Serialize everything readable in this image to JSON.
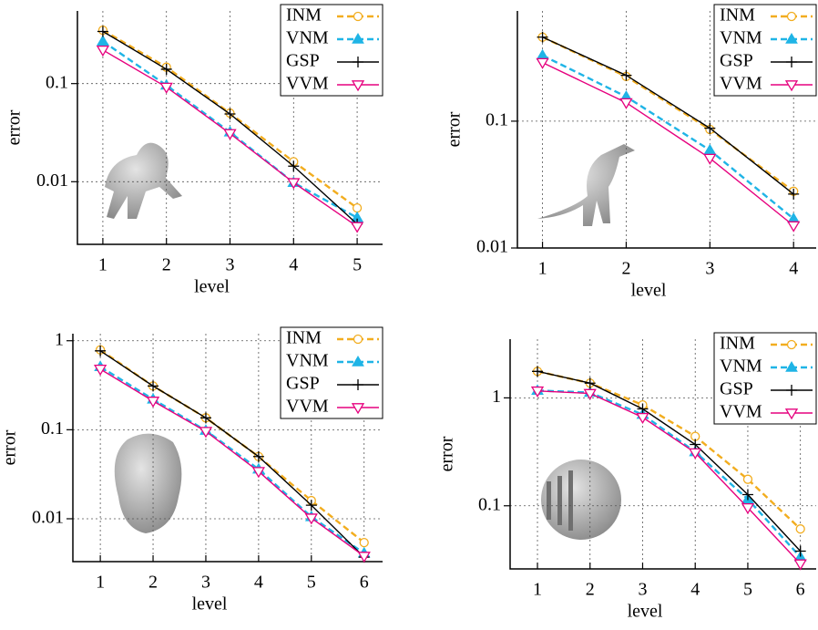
{
  "chart_data": [
    {
      "type": "line",
      "x": [
        1,
        2,
        3,
        4,
        5
      ],
      "xlim": [
        0.6,
        5.4
      ],
      "xticks": [
        1,
        2,
        3,
        4,
        5
      ],
      "ylim": [
        0.0023,
        0.55
      ],
      "yticks": [
        0.01,
        0.1
      ],
      "log_y": true,
      "grid": true,
      "legend": "upper right",
      "xlabel": "level",
      "ylabel": "error",
      "series": [
        {
          "name": "INM",
          "color": "#f2ad1f",
          "marker": "circle",
          "dashed": true,
          "values": [
            0.35,
            0.147,
            0.05,
            0.016,
            0.0054
          ]
        },
        {
          "name": "VNM",
          "color": "#1fb4e6",
          "marker": "triangle",
          "dashed": true,
          "values": [
            0.27,
            0.096,
            0.032,
            0.0098,
            0.0043
          ]
        },
        {
          "name": "GSP",
          "color": "#000000",
          "marker": "plus",
          "dashed": false,
          "values": [
            0.34,
            0.14,
            0.049,
            0.0144,
            0.0037
          ]
        },
        {
          "name": "VVM",
          "color": "#e6007e",
          "marker": "triangle-down",
          "dashed": false,
          "values": [
            0.22,
            0.092,
            0.031,
            0.0098,
            0.0035
          ]
        }
      ]
    },
    {
      "type": "line",
      "x": [
        1,
        2,
        3,
        4
      ],
      "xlim": [
        0.7,
        4.27
      ],
      "xticks": [
        1,
        2,
        3,
        4
      ],
      "ylim": [
        0.01,
        0.74
      ],
      "yticks": [
        0.01,
        0.1
      ],
      "log_y": true,
      "grid": true,
      "legend": "upper right",
      "xlabel": "level",
      "ylabel": "error",
      "series": [
        {
          "name": "INM",
          "color": "#f2ad1f",
          "marker": "circle",
          "dashed": true,
          "values": [
            0.46,
            0.225,
            0.086,
            0.028
          ]
        },
        {
          "name": "VNM",
          "color": "#1fb4e6",
          "marker": "triangle",
          "dashed": true,
          "values": [
            0.33,
            0.156,
            0.059,
            0.017
          ]
        },
        {
          "name": "GSP",
          "color": "#000000",
          "marker": "plus",
          "dashed": false,
          "values": [
            0.46,
            0.23,
            0.088,
            0.0266
          ]
        },
        {
          "name": "VVM",
          "color": "#e6007e",
          "marker": "triangle-down",
          "dashed": false,
          "values": [
            0.29,
            0.14,
            0.051,
            0.015
          ]
        }
      ]
    },
    {
      "type": "line",
      "x": [
        1,
        2,
        3,
        4,
        5,
        6
      ],
      "xlim": [
        0.48,
        6.35
      ],
      "xticks": [
        1,
        2,
        3,
        4,
        5,
        6
      ],
      "ylim": [
        0.0033,
        1.2
      ],
      "yticks": [
        0.01,
        0.1,
        1
      ],
      "log_y": true,
      "grid": true,
      "legend": "upper right",
      "xlabel": "level",
      "ylabel": "error",
      "series": [
        {
          "name": "INM",
          "color": "#f2ad1f",
          "marker": "circle",
          "dashed": true,
          "values": [
            0.79,
            0.31,
            0.136,
            0.05,
            0.016,
            0.0054
          ]
        },
        {
          "name": "VNM",
          "color": "#1fb4e6",
          "marker": "triangle",
          "dashed": true,
          "values": [
            0.51,
            0.22,
            0.098,
            0.036,
            0.0105,
            0.0041
          ]
        },
        {
          "name": "GSP",
          "color": "#000000",
          "marker": "plus",
          "dashed": false,
          "values": [
            0.77,
            0.31,
            0.136,
            0.05,
            0.0142,
            0.0037
          ]
        },
        {
          "name": "VVM",
          "color": "#e6007e",
          "marker": "triangle-down",
          "dashed": false,
          "values": [
            0.48,
            0.21,
            0.096,
            0.034,
            0.0102,
            0.0038
          ]
        }
      ]
    },
    {
      "type": "line",
      "x": [
        1,
        2,
        3,
        4,
        5,
        6
      ],
      "xlim": [
        0.48,
        6.3
      ],
      "xticks": [
        1,
        2,
        3,
        4,
        5,
        6
      ],
      "ylim": [
        0.026,
        3.5
      ],
      "yticks": [
        0.1,
        1
      ],
      "log_y": true,
      "grid": true,
      "legend": "upper right",
      "xlabel": "level",
      "ylabel": "error",
      "series": [
        {
          "name": "INM",
          "color": "#f2ad1f",
          "marker": "circle",
          "dashed": true,
          "values": [
            1.76,
            1.37,
            0.86,
            0.44,
            0.176,
            0.061
          ]
        },
        {
          "name": "VNM",
          "color": "#1fb4e6",
          "marker": "triangle",
          "dashed": true,
          "values": [
            1.17,
            1.12,
            0.7,
            0.316,
            0.115,
            0.0335
          ]
        },
        {
          "name": "GSP",
          "color": "#000000",
          "marker": "plus",
          "dashed": false,
          "values": [
            1.76,
            1.37,
            0.79,
            0.37,
            0.127,
            0.038
          ]
        },
        {
          "name": "VVM",
          "color": "#e6007e",
          "marker": "triangle-down",
          "dashed": false,
          "values": [
            1.16,
            1.1,
            0.66,
            0.31,
            0.096,
            0.029
          ]
        }
      ]
    }
  ]
}
